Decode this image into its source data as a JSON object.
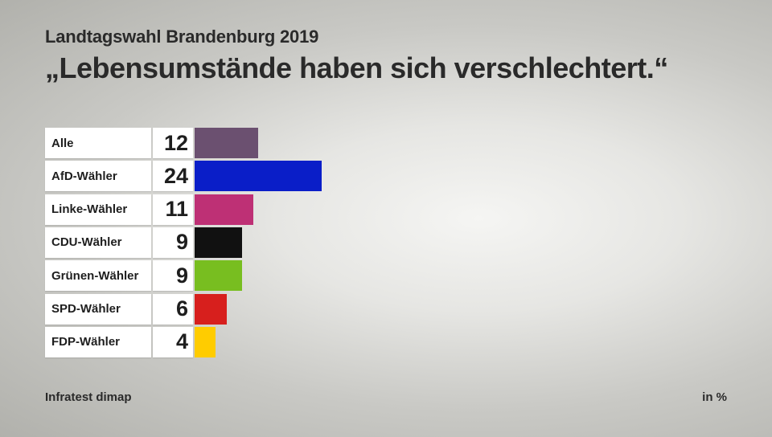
{
  "header": {
    "suptitle": "Landtagswahl Brandenburg 2019",
    "title": "„Lebensumstände haben sich verschlechtert.“"
  },
  "footer": {
    "source": "Infratest dimap",
    "unit": "in %"
  },
  "chart_data": {
    "type": "bar",
    "orientation": "horizontal",
    "title": "„Lebensumstände haben sich verschlechtert.“",
    "subtitle": "Landtagswahl Brandenburg 2019",
    "unit": "in %",
    "categories": [
      "Alle",
      "AfD-Wähler",
      "Linke-Wähler",
      "CDU-Wähler",
      "Grünen-Wähler",
      "SPD-Wähler",
      "FDP-Wähler"
    ],
    "values": [
      12,
      24,
      11,
      9,
      9,
      6,
      4
    ],
    "colors": [
      "#6b5070",
      "#0a1ec8",
      "#be3075",
      "#111111",
      "#78be20",
      "#d71f1d",
      "#ffcc00"
    ],
    "xlim": [
      0,
      100
    ],
    "grid": false,
    "legend": "none"
  }
}
